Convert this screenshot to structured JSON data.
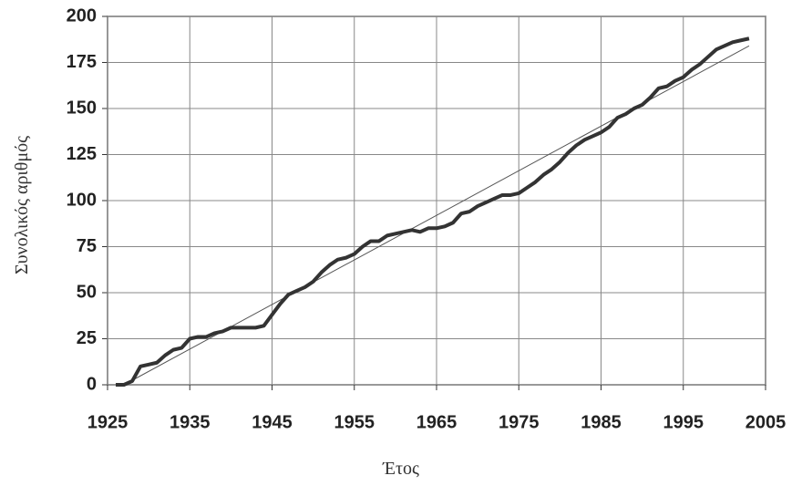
{
  "chart_data": {
    "type": "line",
    "x_label": "Έτος",
    "y_label": "Συνολικός αριθμός",
    "xlim": [
      1925,
      2005
    ],
    "xticks": [
      1925,
      1935,
      1945,
      1955,
      1965,
      1975,
      1985,
      1995,
      2005
    ],
    "ylim": [
      0,
      200
    ],
    "yticks": [
      0,
      25,
      50,
      75,
      100,
      125,
      150,
      175,
      200
    ],
    "grid": true,
    "series": [
      {
        "color": "#333333",
        "width": 4,
        "x": [
          1926,
          1927,
          1928,
          1929,
          1930,
          1931,
          1932,
          1933,
          1934,
          1935,
          1936,
          1937,
          1938,
          1939,
          1940,
          1941,
          1942,
          1943,
          1944,
          1945,
          1946,
          1947,
          1948,
          1949,
          1950,
          1951,
          1952,
          1953,
          1954,
          1955,
          1956,
          1957,
          1958,
          1959,
          1960,
          1961,
          1962,
          1963,
          1964,
          1965,
          1966,
          1967,
          1968,
          1969,
          1970,
          1971,
          1972,
          1973,
          1974,
          1975,
          1976,
          1977,
          1978,
          1979,
          1980,
          1981,
          1982,
          1983,
          1984,
          1985,
          1986,
          1987,
          1988,
          1989,
          1990,
          1991,
          1992,
          1993,
          1994,
          1995,
          1996,
          1997,
          1998,
          1999,
          2000,
          2001,
          2002,
          2003
        ],
        "values": [
          0,
          0,
          2,
          10,
          11,
          12,
          16,
          19,
          20,
          25,
          26,
          26,
          28,
          29,
          31,
          31,
          31,
          31,
          32,
          38,
          44,
          49,
          51,
          53,
          56,
          61,
          65,
          68,
          69,
          71,
          75,
          78,
          78,
          81,
          82,
          83,
          84,
          83,
          85,
          85,
          86,
          88,
          93,
          94,
          97,
          99,
          101,
          103,
          103,
          104,
          107,
          110,
          114,
          117,
          121,
          126,
          130,
          133,
          135,
          137,
          140,
          145,
          147,
          150,
          152,
          156,
          161,
          162,
          165,
          167,
          171,
          174,
          178,
          182,
          184,
          186,
          187,
          188
        ]
      },
      {
        "color": "#555555",
        "width": 1,
        "x": [
          1927,
          2003
        ],
        "values": [
          0,
          184
        ]
      }
    ]
  }
}
